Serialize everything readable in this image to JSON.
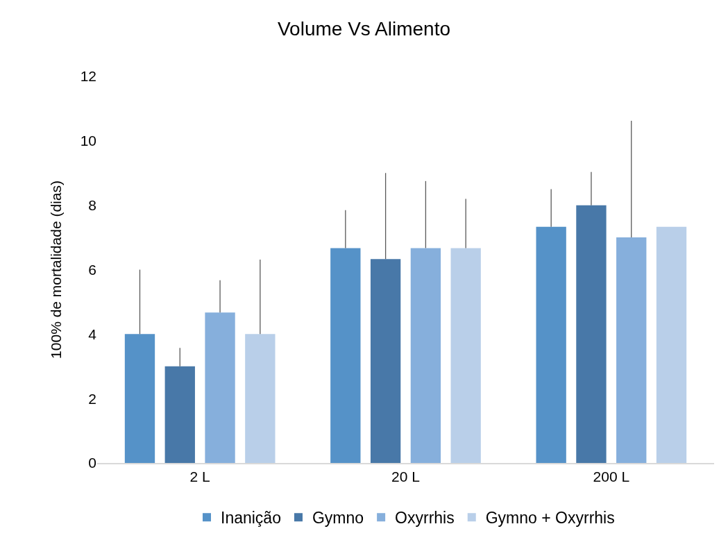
{
  "chart_data": {
    "type": "bar",
    "title": "Volume Vs Alimento",
    "ylabel": "100% de mortalidade (dias)",
    "categories": [
      "2 L",
      "20 L",
      "200 L"
    ],
    "series": [
      {
        "name": "Inanição",
        "color": "#5592c8",
        "values": [
          4,
          6.67,
          7.33
        ],
        "errors": [
          [
            4,
            6
          ],
          [
            6.67,
            7.85
          ],
          [
            7.33,
            8.5
          ]
        ]
      },
      {
        "name": "Gymno",
        "color": "#4878a8",
        "values": [
          3,
          6.33,
          8
        ],
        "errors": [
          [
            3,
            3.57
          ],
          [
            6.33,
            9
          ],
          [
            8,
            9.03
          ]
        ]
      },
      {
        "name": "Oxyrrhis",
        "color": "#86afdc",
        "values": [
          4.67,
          6.67,
          7
        ],
        "errors": [
          [
            4.67,
            5.67
          ],
          [
            6.67,
            8.75
          ],
          [
            7,
            10.62
          ]
        ]
      },
      {
        "name": "Gymno + Oxyrrhis",
        "color": "#b9cfe9",
        "values": [
          4,
          6.67,
          7.33
        ],
        "errors": [
          [
            4,
            6.31
          ],
          [
            6.67,
            8.2
          ],
          null
        ]
      }
    ],
    "ylim": [
      0,
      12
    ],
    "yticks": [
      0,
      2,
      4,
      6,
      8,
      10,
      12
    ],
    "grid": false,
    "legend": "bottom"
  }
}
